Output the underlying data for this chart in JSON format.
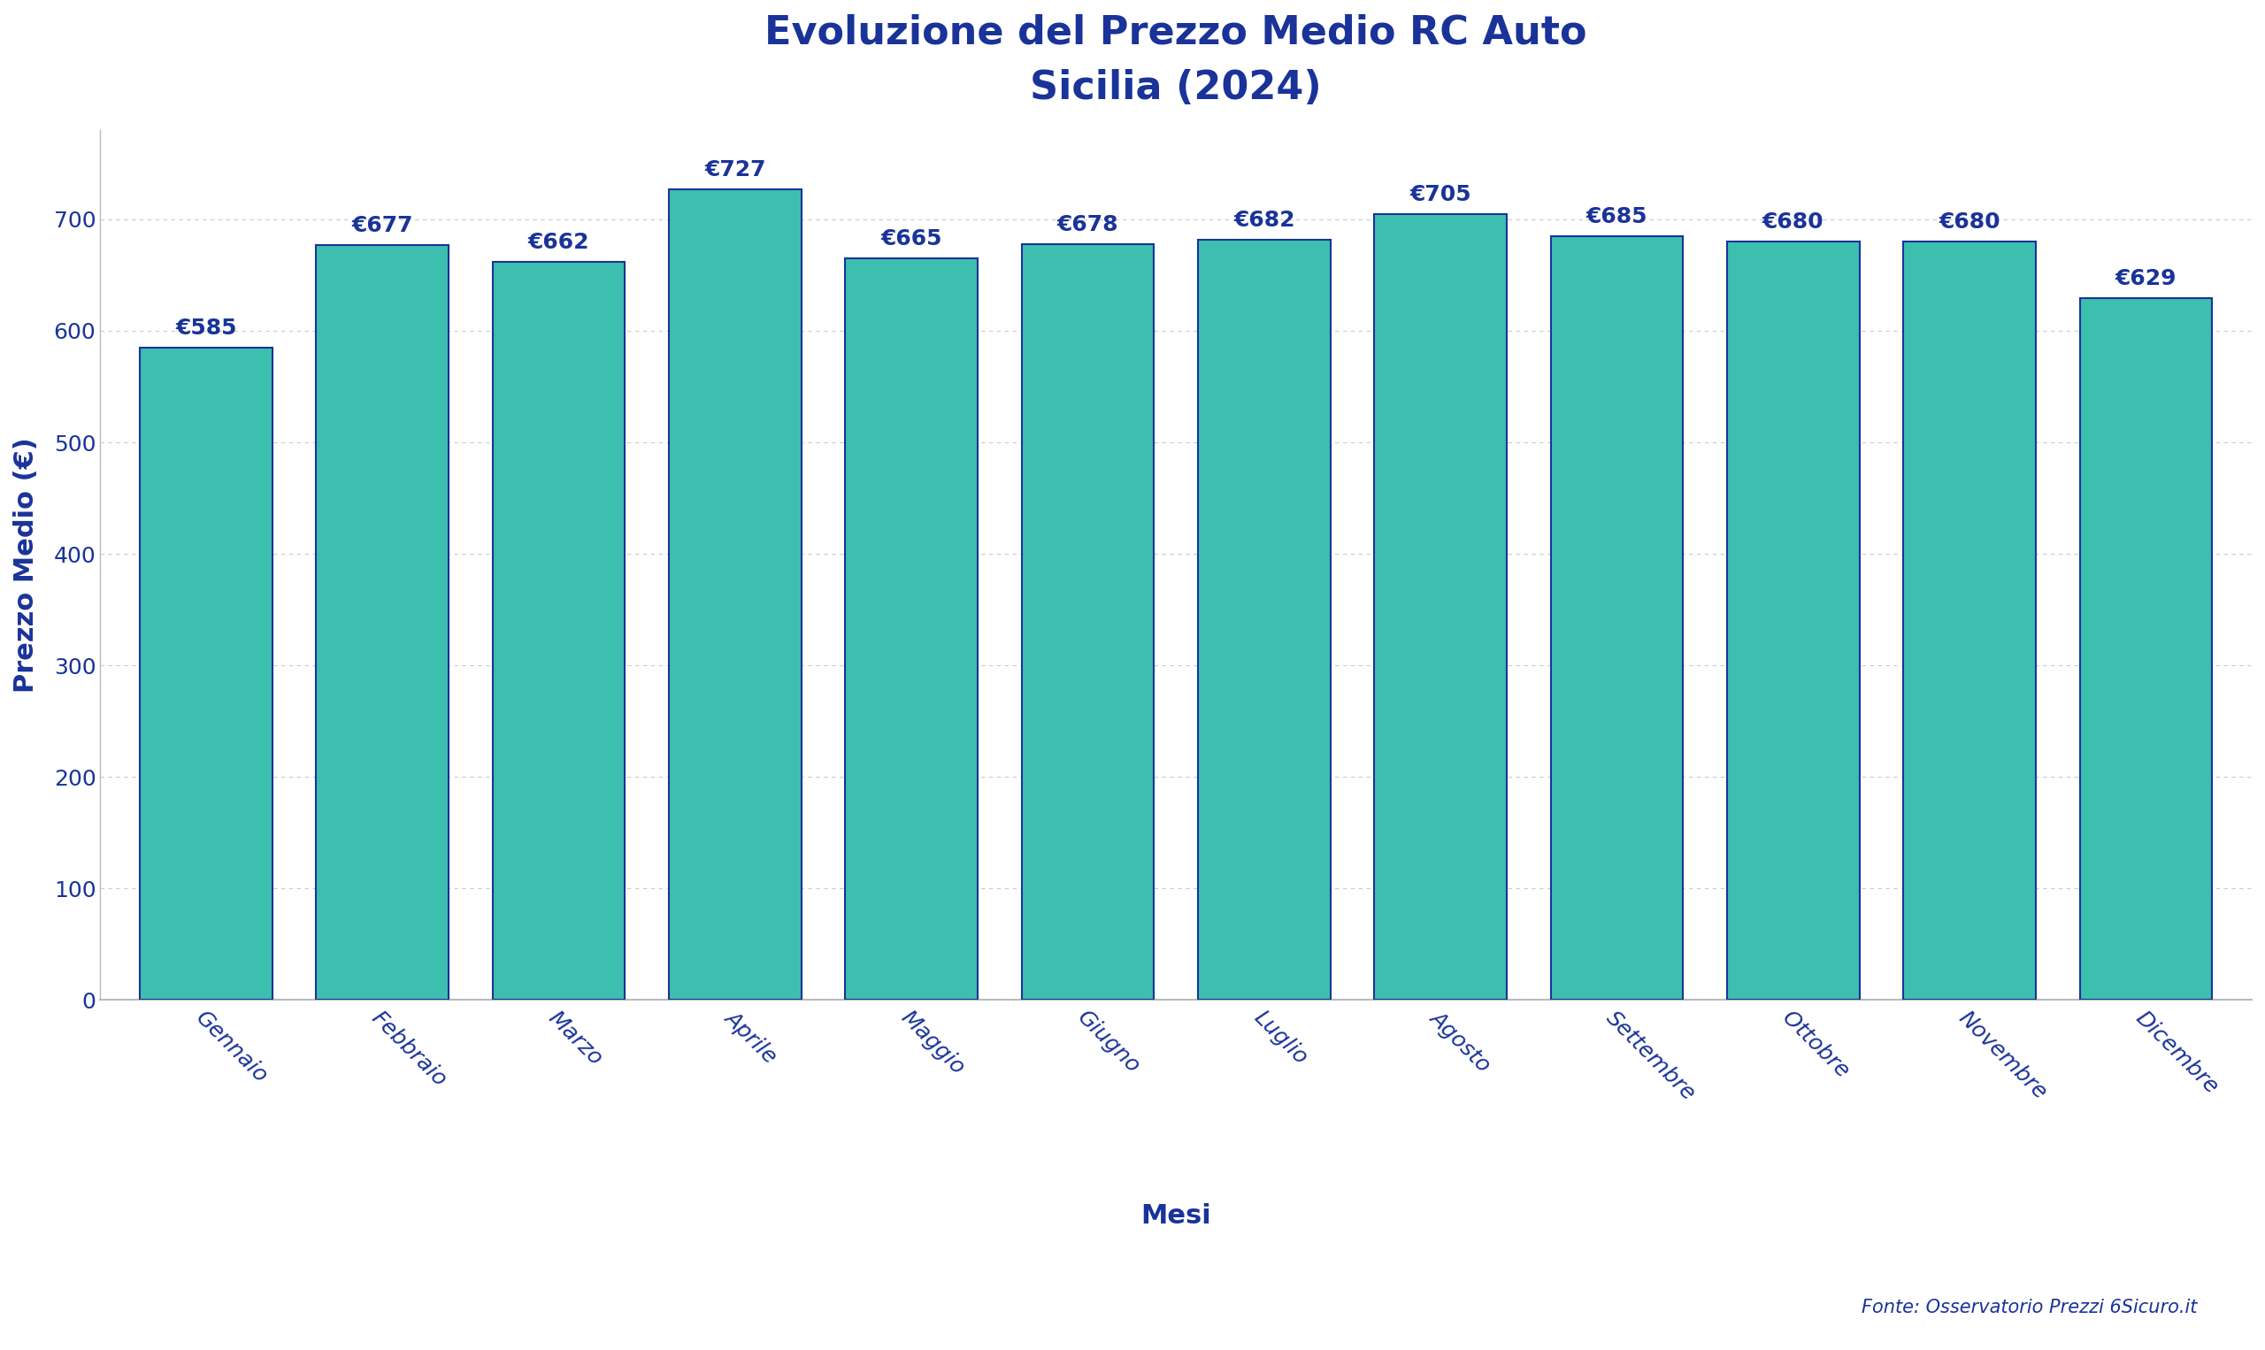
{
  "title": "Evoluzione del Prezzo Medio RC Auto\nSicilia (2024)",
  "xlabel": "Mesi",
  "ylabel": "Prezzo Medio (€)",
  "source": "Fonte: Osservatorio Prezzi 6Sicuro.it",
  "months": [
    "Gennaio",
    "Febbraio",
    "Marzo",
    "Aprile",
    "Maggio",
    "Giugno",
    "Luglio",
    "Agosto",
    "Settembre",
    "Ottobre",
    "Novembre",
    "Dicembre"
  ],
  "values": [
    585,
    677,
    662,
    727,
    665,
    678,
    682,
    705,
    685,
    680,
    680,
    629
  ],
  "bar_color": "#3dbfb0",
  "bar_edge_color": "#1a3399",
  "bar_edge_width": 1.5,
  "title_color": "#1a3399",
  "label_color": "#1a3399",
  "tick_color": "#1a3399",
  "value_label_color": "#1a3399",
  "grid_color": "#cccccc",
  "background_color": "#ffffff",
  "ylim": [
    0,
    780
  ],
  "yticks": [
    0,
    100,
    200,
    300,
    400,
    500,
    600,
    700
  ],
  "bar_width": 0.75,
  "title_fontsize": 32,
  "axis_label_fontsize": 22,
  "tick_fontsize": 18,
  "value_label_fontsize": 18,
  "source_fontsize": 15
}
